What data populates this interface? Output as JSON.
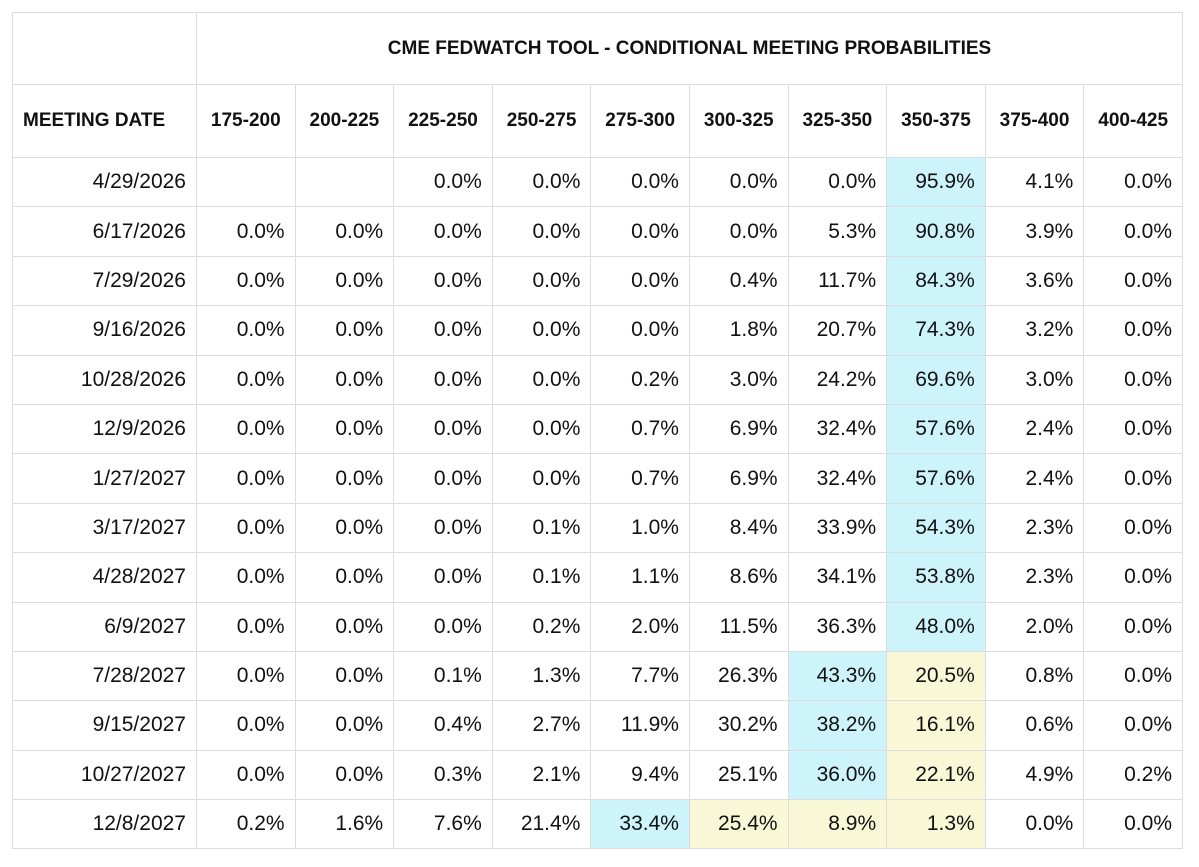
{
  "table": {
    "title": "CME FEDWATCH TOOL - CONDITIONAL MEETING PROBABILITIES",
    "date_header": "MEETING DATE",
    "columns": [
      "175-200",
      "200-225",
      "225-250",
      "250-275",
      "275-300",
      "300-325",
      "325-350",
      "350-375",
      "375-400",
      "400-425"
    ],
    "rows": [
      {
        "date": "4/29/2026",
        "cells": [
          null,
          null,
          "0.0%",
          "0.0%",
          "0.0%",
          "0.0%",
          "0.0%",
          {
            "text": "95.9%",
            "fill": "#cdf3fb"
          },
          "4.1%",
          "0.0%"
        ]
      },
      {
        "date": "6/17/2026",
        "cells": [
          "0.0%",
          "0.0%",
          "0.0%",
          "0.0%",
          "0.0%",
          "0.0%",
          "5.3%",
          {
            "text": "90.8%",
            "fill": "#cdf3fb"
          },
          "3.9%",
          "0.0%"
        ]
      },
      {
        "date": "7/29/2026",
        "cells": [
          "0.0%",
          "0.0%",
          "0.0%",
          "0.0%",
          "0.0%",
          "0.4%",
          "11.7%",
          {
            "text": "84.3%",
            "fill": "#cdf3fb"
          },
          "3.6%",
          "0.0%"
        ]
      },
      {
        "date": "9/16/2026",
        "cells": [
          "0.0%",
          "0.0%",
          "0.0%",
          "0.0%",
          "0.0%",
          "1.8%",
          "20.7%",
          {
            "text": "74.3%",
            "fill": "#cdf3fb"
          },
          "3.2%",
          "0.0%"
        ]
      },
      {
        "date": "10/28/2026",
        "cells": [
          "0.0%",
          "0.0%",
          "0.0%",
          "0.0%",
          "0.2%",
          "3.0%",
          "24.2%",
          {
            "text": "69.6%",
            "fill": "#cdf3fb"
          },
          "3.0%",
          "0.0%"
        ]
      },
      {
        "date": "12/9/2026",
        "cells": [
          "0.0%",
          "0.0%",
          "0.0%",
          "0.0%",
          "0.7%",
          "6.9%",
          "32.4%",
          {
            "text": "57.6%",
            "fill": "#cdf3fb"
          },
          "2.4%",
          "0.0%"
        ]
      },
      {
        "date": "1/27/2027",
        "cells": [
          "0.0%",
          "0.0%",
          "0.0%",
          "0.0%",
          "0.7%",
          "6.9%",
          "32.4%",
          {
            "text": "57.6%",
            "fill": "#cdf3fb"
          },
          "2.4%",
          "0.0%"
        ]
      },
      {
        "date": "3/17/2027",
        "cells": [
          "0.0%",
          "0.0%",
          "0.0%",
          "0.1%",
          "1.0%",
          "8.4%",
          "33.9%",
          {
            "text": "54.3%",
            "fill": "#cdf3fb"
          },
          "2.3%",
          "0.0%"
        ]
      },
      {
        "date": "4/28/2027",
        "cells": [
          "0.0%",
          "0.0%",
          "0.0%",
          "0.1%",
          "1.1%",
          "8.6%",
          "34.1%",
          {
            "text": "53.8%",
            "fill": "#cdf3fb"
          },
          "2.3%",
          "0.0%"
        ]
      },
      {
        "date": "6/9/2027",
        "cells": [
          "0.0%",
          "0.0%",
          "0.0%",
          "0.2%",
          "2.0%",
          "11.5%",
          "36.3%",
          {
            "text": "48.0%",
            "fill": "#cdf3fb"
          },
          "2.0%",
          "0.0%"
        ]
      },
      {
        "date": "7/28/2027",
        "cells": [
          "0.0%",
          "0.0%",
          "0.1%",
          "1.3%",
          "7.7%",
          "26.3%",
          {
            "text": "43.3%",
            "fill": "#cdf3fb"
          },
          {
            "text": "20.5%",
            "fill": "#f8f8d6"
          },
          "0.8%",
          "0.0%"
        ]
      },
      {
        "date": "9/15/2027",
        "cells": [
          "0.0%",
          "0.0%",
          "0.4%",
          "2.7%",
          "11.9%",
          "30.2%",
          {
            "text": "38.2%",
            "fill": "#cdf3fb"
          },
          {
            "text": "16.1%",
            "fill": "#f8f8d6"
          },
          "0.6%",
          "0.0%"
        ]
      },
      {
        "date": "10/27/2027",
        "cells": [
          "0.0%",
          "0.0%",
          "0.3%",
          "2.1%",
          "9.4%",
          "25.1%",
          {
            "text": "36.0%",
            "fill": "#cdf3fb"
          },
          {
            "text": "22.1%",
            "fill": "#f8f8d6"
          },
          "4.9%",
          "0.2%"
        ]
      },
      {
        "date": "12/8/2027",
        "cells": [
          "0.2%",
          "1.6%",
          "7.6%",
          "21.4%",
          {
            "text": "33.4%",
            "fill": "#cdf3fb"
          },
          {
            "text": "25.4%",
            "fill": "#f8f8d6"
          },
          {
            "text": "8.9%",
            "fill": "#f8f8d6"
          },
          {
            "text": "1.3%",
            "fill": "#f8f8d6"
          },
          "0.0%",
          "0.0%"
        ]
      }
    ]
  }
}
